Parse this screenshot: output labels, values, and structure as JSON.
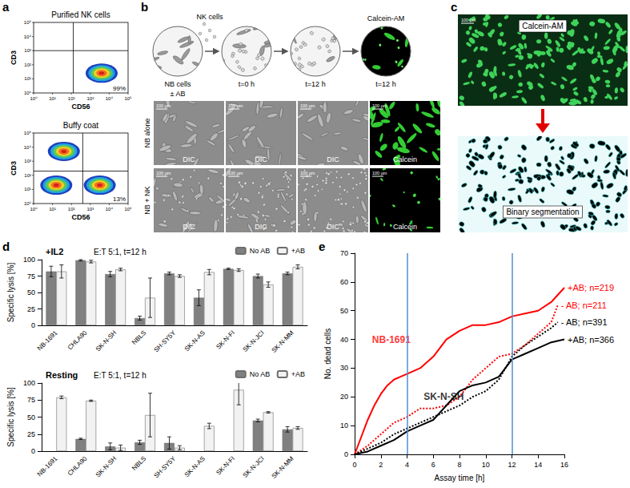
{
  "panel_labels": [
    "a",
    "b",
    "c",
    "d",
    "e"
  ],
  "flow_cytometry": {
    "x_label": "CD56",
    "y_label": "CD3",
    "xlim": [
      0,
      5
    ],
    "ylim": [
      0,
      5
    ],
    "ticks": [
      {
        "value": 0,
        "label": "10⁰"
      },
      {
        "value": 1,
        "label": "10¹"
      },
      {
        "value": 2,
        "label": "10²"
      },
      {
        "value": 3,
        "label": "10³"
      },
      {
        "value": 4,
        "label": "10⁴"
      },
      {
        "value": 5,
        "label": "10⁵"
      }
    ],
    "plots": [
      {
        "title": "Purified NK cells",
        "gate": [
          2.1,
          3.0
        ],
        "quadrant_label": "99%",
        "populations": [
          [
            3.6,
            1.4
          ]
        ]
      },
      {
        "title": "Buffy coat",
        "gate": [
          2.6,
          2.3
        ],
        "quadrant_label": "13%",
        "populations": [
          [
            1.6,
            3.7
          ],
          [
            1.2,
            1.3
          ],
          [
            3.5,
            1.3
          ]
        ]
      }
    ]
  },
  "schematic": {
    "texts": {
      "nk_cells": "NK cells",
      "nb_cells": "NB cells",
      "antibody": "± AB",
      "start": "t=0 h",
      "end": "t=12 h",
      "stain": "Calcein-AM",
      "stain_time": "t=12 h"
    }
  },
  "micrographs": {
    "rows": [
      "NB alone",
      "NB + NK"
    ],
    "columns": [
      "DIC",
      "DIC",
      "DIC",
      "Calcein"
    ],
    "scale_bar": "100 µm"
  },
  "segmentation": {
    "top": "Calcein-AM",
    "bottom": "Binary segmentation",
    "scale_bar": "100 µm"
  },
  "chart_data": [
    {
      "type": "bar",
      "title": "+IL2",
      "subtitle": "E:T 5:1, t=12 h",
      "y_label": "Specific lysis [%]",
      "categories": [
        "NB-1691",
        "CHLA90",
        "SK-N-SH",
        "NBLS",
        "SH-SY5Y",
        "SK-N-AS",
        "SK-N-FI",
        "SK-N-JCI",
        "SK-N-MM"
      ],
      "series": [
        {
          "name": "No AB",
          "color": "#808080",
          "values": [
            82,
            99,
            78,
            11,
            79,
            42,
            86,
            75,
            79
          ],
          "errors": [
            8,
            1,
            4,
            3,
            2,
            12,
            1,
            3,
            2
          ]
        },
        {
          "name": "+AB",
          "color": "#f2f2f2",
          "values": [
            82,
            97,
            85,
            42,
            75,
            81,
            84,
            62,
            89
          ],
          "errors": [
            10,
            2,
            2,
            30,
            2,
            4,
            2,
            4,
            3
          ]
        }
      ],
      "ylim": [
        0,
        100
      ],
      "yticks": [
        0,
        25,
        50,
        75,
        100
      ],
      "grid": false,
      "legend": "top-right"
    },
    {
      "type": "bar",
      "title": "Resting",
      "subtitle": "E:T 5:1, t=12 h",
      "y_label": "Specific lysis [%]",
      "categories": [
        "NB-1691",
        "CHLA90",
        "SK-N-SH",
        "NBLS",
        "SH-SY5Y",
        "SK-N-AS",
        "SK-N-FI",
        "SK-N-JCI",
        "SK-N-MM"
      ],
      "series": [
        {
          "name": "No AB",
          "color": "#808080",
          "values": [
            null,
            18,
            7,
            13,
            12,
            null,
            null,
            45,
            32
          ],
          "errors": [
            null,
            1,
            5,
            3,
            9,
            null,
            null,
            2,
            4
          ]
        },
        {
          "name": "+AB",
          "color": "#f2f2f2",
          "values": [
            79,
            74,
            5,
            53,
            5,
            37,
            90,
            57,
            34
          ],
          "errors": [
            2,
            1,
            4,
            32,
            3,
            4,
            22,
            1,
            2
          ]
        }
      ],
      "ylim": [
        0,
        100
      ],
      "yticks": [
        0,
        25,
        50,
        75,
        100
      ],
      "grid": false,
      "legend": "top-right"
    },
    {
      "type": "line",
      "x_label": "Assay time [h]",
      "y_label": "No. dead cells",
      "xlim": [
        0,
        16
      ],
      "xticks": [
        0,
        2,
        4,
        6,
        8,
        10,
        12,
        14,
        16
      ],
      "ylim": [
        0,
        70
      ],
      "yticks": [
        0,
        10,
        20,
        30,
        40,
        50,
        60,
        70
      ],
      "grid": false,
      "reference_x": [
        4,
        12
      ],
      "series": [
        {
          "name": "+AB; n=219",
          "color": "#ff0000",
          "line_style": "solid",
          "x": [
            0,
            0.5,
            1,
            1.5,
            2,
            2.5,
            3,
            3.5,
            4,
            5,
            6,
            7,
            8,
            9,
            10,
            11,
            12,
            13,
            14,
            15,
            16
          ],
          "values": [
            0,
            6,
            12,
            17,
            21,
            24,
            26,
            27,
            28,
            30,
            34,
            40,
            43,
            45,
            45,
            46,
            48,
            49,
            50,
            53,
            58
          ]
        },
        {
          "name": "- AB; n=211",
          "color": "#ff0000",
          "line_style": "dotted",
          "x": [
            0,
            1,
            2,
            3,
            4,
            5,
            6,
            7,
            8,
            9,
            10,
            11,
            12,
            13,
            14,
            15,
            15.5
          ],
          "values": [
            0,
            3,
            7,
            11,
            13,
            16,
            16,
            17,
            20,
            26,
            30,
            34,
            35,
            38,
            42,
            46,
            52
          ]
        },
        {
          "name": "- AB; n=391",
          "color": "#000000",
          "line_style": "dotted",
          "x": [
            0,
            1,
            2,
            3,
            4,
            5,
            6,
            7,
            8,
            9,
            10,
            11,
            12,
            13,
            14,
            15,
            15.5
          ],
          "values": [
            0,
            2,
            4,
            7,
            9,
            11,
            13,
            15,
            17,
            20,
            22,
            26,
            34,
            38,
            41,
            44,
            46
          ]
        },
        {
          "name": "+AB; n=366",
          "color": "#000000",
          "line_style": "solid",
          "x": [
            0,
            1,
            2,
            3,
            4,
            5,
            6,
            7,
            8,
            9,
            10,
            11,
            12,
            13,
            14,
            15,
            16
          ],
          "values": [
            0,
            1,
            3,
            5,
            8,
            10,
            12,
            17,
            22,
            24,
            25,
            27,
            33,
            35,
            37,
            39,
            40
          ]
        }
      ],
      "annotations": [
        {
          "text": "NB-1691",
          "x": 2.8,
          "y": 40,
          "color": "#ff0000"
        },
        {
          "text": "SK-N-SH",
          "x": 6.8,
          "y": 20,
          "color": "#000000"
        }
      ]
    }
  ]
}
